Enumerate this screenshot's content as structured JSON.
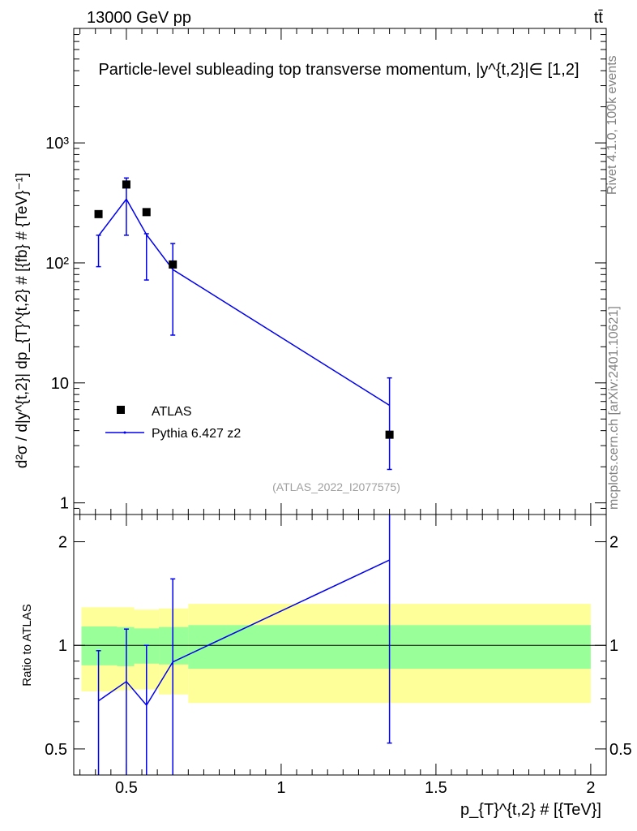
{
  "header": {
    "energy_label": "13000 GeV pp",
    "process_label": "tt̄"
  },
  "side_labels": {
    "rivet": "Rivet 4.1.0,  100k events",
    "source": "mcplots.cern.ch [arXiv:2401.10621]"
  },
  "chart_data": [
    {
      "type": "scatter",
      "panel": "main",
      "title": "Particle-level subleading top transverse momentum, |y^{t,2}|∈ [1,2]",
      "ylabel": "d²σ / d|y^{t,2}| dp_{T}^{t,2} # [{fb} # {TeV}⁻¹]",
      "annotation": "(ATLAS_2022_I2077575)",
      "yscale": "log",
      "xlim": [
        0.33,
        2.05
      ],
      "ylim": [
        0.8,
        9000
      ],
      "ytick_labels": [
        "1",
        "10",
        "10²",
        "10³"
      ],
      "legend_position": "lower-left",
      "series": [
        {
          "name": "ATLAS",
          "style": "markers",
          "color": "#000000",
          "x": [
            0.41,
            0.5,
            0.565,
            0.65,
            1.35
          ],
          "y": [
            255,
            450,
            265,
            97,
            3.7
          ]
        },
        {
          "name": "Pythia 6.427 z2",
          "style": "line",
          "color": "#0000ee",
          "x": [
            0.41,
            0.5,
            0.565,
            0.65,
            1.35
          ],
          "y": [
            168,
            340,
            172,
            88,
            6.5
          ],
          "y_low": [
            93,
            170,
            72,
            25,
            1.9
          ],
          "y_high": [
            170,
            510,
            175,
            145,
            11
          ]
        }
      ]
    },
    {
      "type": "line",
      "panel": "ratio",
      "ylabel": "Ratio to ATLAS",
      "xlabel": "p_{T}^{t,2} # [{TeV}]",
      "yscale": "log",
      "xlim": [
        0.33,
        2.05
      ],
      "ylim": [
        0.42,
        2.4
      ],
      "x_tick_labels": [
        "0.5",
        "1",
        "1.5",
        "2"
      ],
      "y_tick_labels": [
        "0.5",
        "1",
        "2"
      ],
      "bins": [
        {
          "lo": 0.355,
          "hi": 0.47,
          "band_1sigma": [
            0.875,
            1.135
          ],
          "band_2sigma": [
            0.735,
            1.29
          ]
        },
        {
          "lo": 0.47,
          "hi": 0.525,
          "band_1sigma": [
            0.87,
            1.13
          ],
          "band_2sigma": [
            0.74,
            1.29
          ]
        },
        {
          "lo": 0.525,
          "hi": 0.605,
          "band_1sigma": [
            0.885,
            1.12
          ],
          "band_2sigma": [
            0.745,
            1.27
          ]
        },
        {
          "lo": 0.605,
          "hi": 0.7,
          "band_1sigma": [
            0.88,
            1.13
          ],
          "band_2sigma": [
            0.72,
            1.28
          ]
        },
        {
          "lo": 0.7,
          "hi": 2.0,
          "band_1sigma": [
            0.855,
            1.145
          ],
          "band_2sigma": [
            0.68,
            1.32
          ]
        }
      ],
      "series": [
        {
          "name": "Pythia 6.427 z2",
          "color": "#0000ee",
          "x": [
            0.41,
            0.5,
            0.565,
            0.65,
            1.35
          ],
          "y": [
            0.69,
            0.785,
            0.67,
            0.895,
            1.77
          ],
          "y_low": [
            0.4,
            0.4,
            0.4,
            0.4,
            0.52
          ],
          "y_high": [
            0.965,
            1.115,
            1.0,
            1.56,
            2.4
          ]
        }
      ],
      "colors": {
        "band_1sigma": "#99ff99",
        "band_2sigma": "#ffff99"
      }
    }
  ]
}
